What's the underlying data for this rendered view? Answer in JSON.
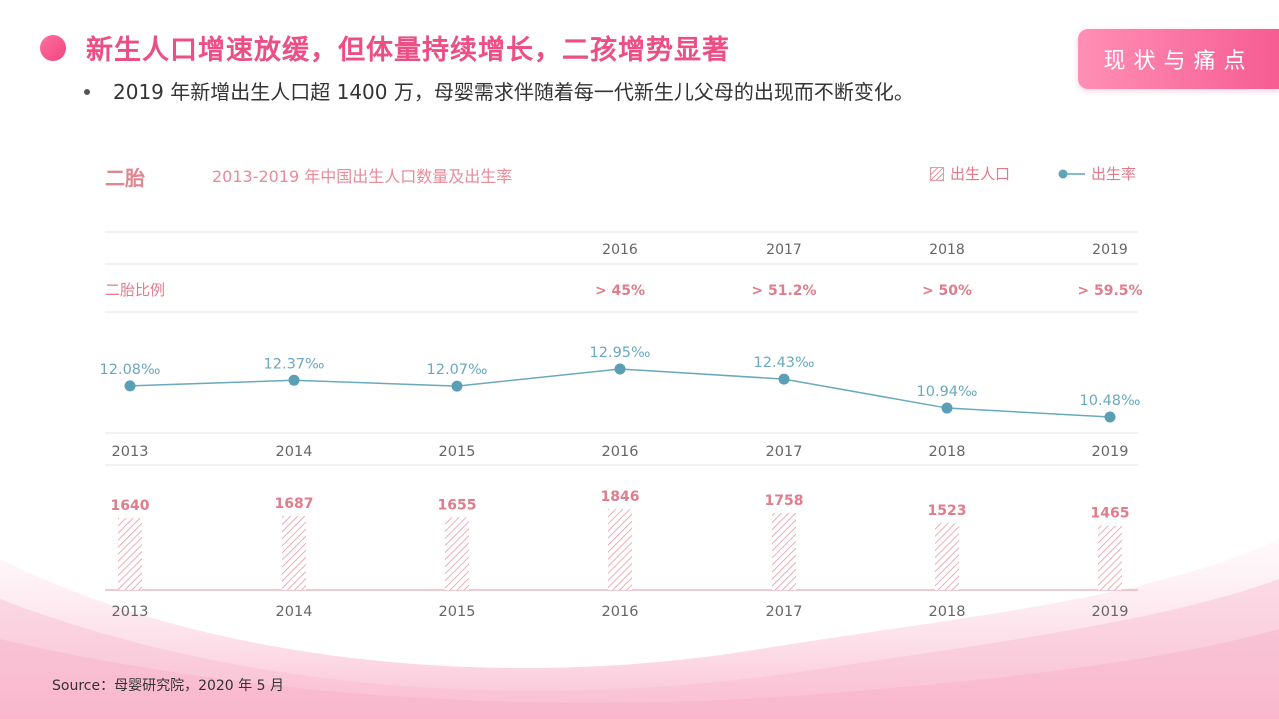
{
  "header": {
    "title": "新生人口增速放缓，但体量持续增长，二孩增势显著",
    "badge": "现状与痛点",
    "bullet": "2019 年新增出生人口超 1400 万，母婴需求伴随着每一代新生儿父母的出现而不断变化。"
  },
  "chart_header": {
    "left_label": "二胎",
    "subtitle": "2013-2019 年中国出生人口数量及出生率",
    "legend_births": "出生人口",
    "legend_rate": "出生率"
  },
  "colors": {
    "title": "#ec4f85",
    "rate_line": "#5fa3b8",
    "births_text": "#e07d8c",
    "hatch": "#e79aa6",
    "grid": "#e6e6e6"
  },
  "second_child_table": {
    "row_label": "二胎比例",
    "years": [
      "2016",
      "2017",
      "2018",
      "2019"
    ],
    "values": [
      "> 45%",
      "> 51.2%",
      "> 50%",
      "> 59.5%"
    ]
  },
  "chart_data": [
    {
      "type": "line",
      "series": [
        {
          "name": "出生率",
          "values": [
            12.08,
            12.37,
            12.07,
            12.95,
            12.43,
            10.94,
            10.48
          ]
        }
      ],
      "categories": [
        "2013",
        "2014",
        "2015",
        "2016",
        "2017",
        "2018",
        "2019"
      ],
      "labels": [
        "12.08‰",
        "12.37‰",
        "12.07‰",
        "12.95‰",
        "12.43‰",
        "10.94‰",
        "10.48‰"
      ],
      "grid": false
    },
    {
      "type": "bar",
      "series": [
        {
          "name": "出生人口",
          "values": [
            1640,
            1687,
            1655,
            1846,
            1758,
            1523,
            1465
          ]
        }
      ],
      "categories": [
        "2013",
        "2014",
        "2015",
        "2016",
        "2017",
        "2018",
        "2019"
      ],
      "grid": false
    }
  ],
  "footer": {
    "source": "Source：母婴研究院，2020 年 5 月"
  }
}
